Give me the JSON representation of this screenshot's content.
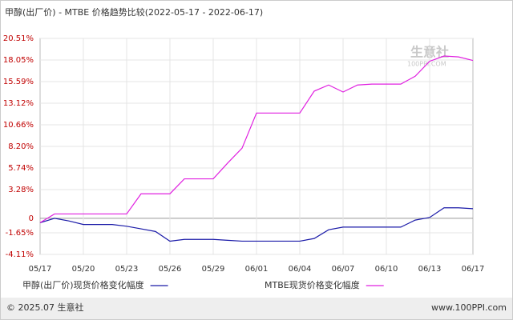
{
  "chart_data": {
    "type": "line",
    "title": "甲醇(出厂价) - MTBE 价格趋势比较(2022-05-17 - 2022-06-17)",
    "categories": [
      "05/17",
      null,
      null,
      "05/20",
      null,
      null,
      "05/23",
      null,
      null,
      "05/26",
      null,
      null,
      "05/29",
      null,
      null,
      "06/01",
      null,
      null,
      "06/04",
      null,
      null,
      "06/07",
      null,
      null,
      "06/10",
      null,
      null,
      "06/13",
      null,
      null,
      "06/17"
    ],
    "series": [
      {
        "name": "甲醇(出厂价)现货价格变化幅度",
        "color": "#1a1aa8",
        "values": [
          -0.5,
          0,
          -0.3,
          -0.7,
          -0.7,
          -0.7,
          -0.9,
          -1.2,
          -1.5,
          -2.6,
          -2.4,
          -2.4,
          -2.4,
          -2.5,
          -2.6,
          -2.6,
          -2.6,
          -2.6,
          -2.6,
          -2.3,
          -1.3,
          -1.0,
          -1.0,
          -1.0,
          -1.0,
          -1.0,
          -0.2,
          0.1,
          1.2,
          1.2,
          1.1
        ]
      },
      {
        "name": "MTBE现货价格变化幅度",
        "color": "#e020e0",
        "values": [
          -0.5,
          0.5,
          0.5,
          0.5,
          0.5,
          0.5,
          0.5,
          2.8,
          2.8,
          2.8,
          4.5,
          4.5,
          4.5,
          6.3,
          8.0,
          12.0,
          12.0,
          12.0,
          12.0,
          14.5,
          15.2,
          14.4,
          15.2,
          15.3,
          15.3,
          15.3,
          16.2,
          17.9,
          18.5,
          18.4,
          18.0
        ]
      }
    ],
    "ylim": [
      -4.11,
      20.51
    ],
    "yticks": [
      {
        "value": -4.11,
        "label": "-4.11%"
      },
      {
        "value": -1.65,
        "label": "-1.65%"
      },
      0,
      {
        "value": 3.28,
        "label": "3.28%"
      },
      {
        "value": 5.74,
        "label": "5.74%"
      },
      {
        "value": 8.2,
        "label": "8.20%"
      },
      {
        "value": 10.66,
        "label": "10.66%"
      },
      {
        "value": 13.12,
        "label": "13.12%"
      },
      {
        "value": 15.59,
        "label": "15.59%"
      },
      {
        "value": 18.05,
        "label": "18.05%"
      },
      {
        "value": 20.51,
        "label": "20.51%"
      }
    ],
    "grid": true,
    "watermark": "生意社",
    "watermark_sub": "100PPI.COM"
  },
  "footer": {
    "left": "© 2025.07 生意社",
    "right": "www.100PPI.com"
  }
}
